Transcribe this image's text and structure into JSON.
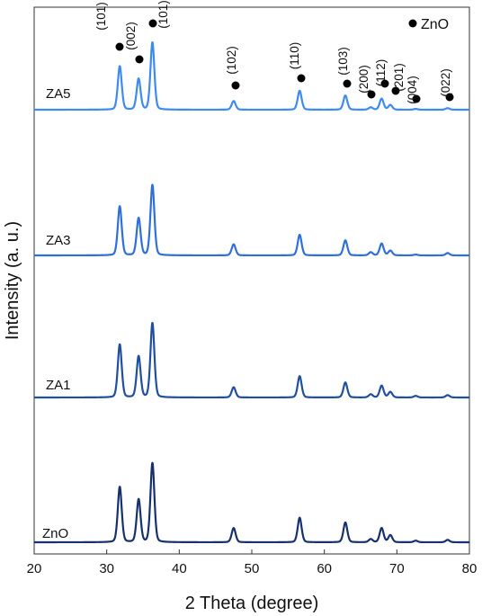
{
  "chart_data": {
    "type": "line",
    "title": "",
    "xlabel": "2 Theta (degree)",
    "ylabel": "Intensity (a. u.)",
    "xlim": [
      20,
      80
    ],
    "xticks": [
      20,
      30,
      40,
      50,
      60,
      70,
      80
    ],
    "yticks": "none",
    "grid": false,
    "legend": {
      "label": "ZnO",
      "marker": "filled-circle",
      "placement": "top-right"
    },
    "peaks": [
      {
        "x": 31.8,
        "hkl": "(101)"
      },
      {
        "x": 34.4,
        "hkl": "(002)"
      },
      {
        "x": 36.3,
        "hkl": "(101)"
      },
      {
        "x": 47.5,
        "hkl": "(102)"
      },
      {
        "x": 56.6,
        "hkl": "(110)"
      },
      {
        "x": 62.9,
        "hkl": "(103)"
      },
      {
        "x": 66.4,
        "hkl": "(200)"
      },
      {
        "x": 67.9,
        "hkl": "(112)"
      },
      {
        "x": 69.1,
        "hkl": "(201)"
      },
      {
        "x": 72.6,
        "hkl": "(004)"
      },
      {
        "x": 77.0,
        "hkl": "(022)"
      }
    ],
    "series": [
      {
        "name": "ZA5",
        "color": "#3d8bf0",
        "relative_intensity": [
          0.55,
          0.39,
          0.85,
          0.11,
          0.24,
          0.18,
          0.03,
          0.14,
          0.06,
          0.01,
          0.02
        ]
      },
      {
        "name": "ZA3",
        "color": "#2f6fd8",
        "relative_intensity": [
          0.62,
          0.47,
          0.89,
          0.14,
          0.26,
          0.19,
          0.04,
          0.15,
          0.06,
          0.01,
          0.03
        ]
      },
      {
        "name": "ZA1",
        "color": "#1f4f9e",
        "relative_intensity": [
          0.67,
          0.52,
          0.94,
          0.13,
          0.27,
          0.19,
          0.04,
          0.15,
          0.07,
          0.02,
          0.03
        ]
      },
      {
        "name": "ZnO",
        "color": "#16316e",
        "relative_intensity": [
          0.7,
          0.54,
          1.0,
          0.18,
          0.31,
          0.25,
          0.04,
          0.18,
          0.09,
          0.02,
          0.03
        ]
      }
    ]
  }
}
